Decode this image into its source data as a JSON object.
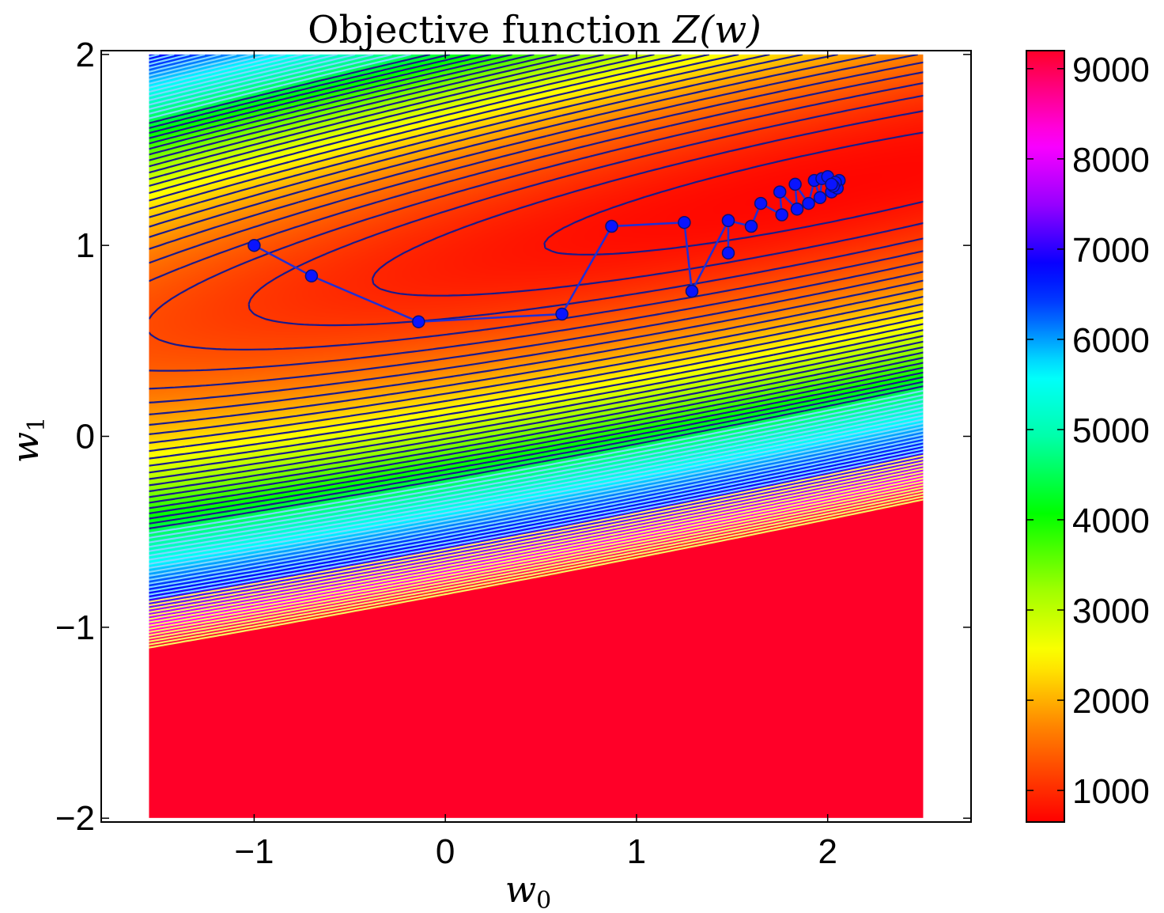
{
  "chart_data": {
    "type": "contour",
    "title": "Objective function Z(w)",
    "title_main": "Objective function ",
    "title_math": "Z(w)",
    "xlabel": "w0",
    "ylabel": "w1",
    "xlabel_base": "w",
    "xlabel_sub": "0",
    "ylabel_base": "w",
    "ylabel_sub": "1",
    "xlim": [
      -1.8,
      2.75
    ],
    "ylim": [
      -2.02,
      2.02
    ],
    "data_x_range": [
      -1.55,
      2.5
    ],
    "data_y_range": [
      -2.0,
      2.0
    ],
    "xticks": [
      -1,
      0,
      1,
      2
    ],
    "xtick_labels": [
      "−1",
      "0",
      "1",
      "2"
    ],
    "yticks": [
      -2,
      -1,
      0,
      1,
      2
    ],
    "ytick_labels": [
      "−2",
      "−1",
      "0",
      "1",
      "2"
    ],
    "colormap": "gist_rainbow (reversed)",
    "colorbar": {
      "range": [
        650,
        9200
      ],
      "ticks": [
        1000,
        2000,
        3000,
        4000,
        5000,
        6000,
        7000,
        8000,
        9000
      ],
      "tick_labels": [
        "1000",
        "2000",
        "3000",
        "4000",
        "5000",
        "6000",
        "7000",
        "8000",
        "9000"
      ]
    },
    "colors": {
      "path": "#1f2fd6",
      "marker_fill": "#0a14ff",
      "marker_edge": "#08107a",
      "contour_low": "#1a1a8c",
      "contour_high": "#f7f760"
    },
    "path": {
      "x": [
        -1.0,
        -0.7,
        -0.14,
        0.61,
        0.87,
        1.25,
        1.29,
        1.48,
        1.48,
        1.48,
        1.6,
        1.65,
        1.76,
        1.75,
        1.84,
        1.83,
        1.9,
        1.93,
        1.96,
        1.97,
        2.02,
        2.0,
        2.06,
        2.05,
        2.04,
        2.03,
        2.02
      ],
      "y": [
        1.0,
        0.84,
        0.6,
        0.64,
        1.1,
        1.12,
        0.76,
        1.13,
        0.96,
        1.13,
        1.1,
        1.22,
        1.16,
        1.28,
        1.19,
        1.32,
        1.22,
        1.34,
        1.25,
        1.35,
        1.28,
        1.36,
        1.34,
        1.3,
        1.33,
        1.31,
        1.32
      ]
    }
  }
}
